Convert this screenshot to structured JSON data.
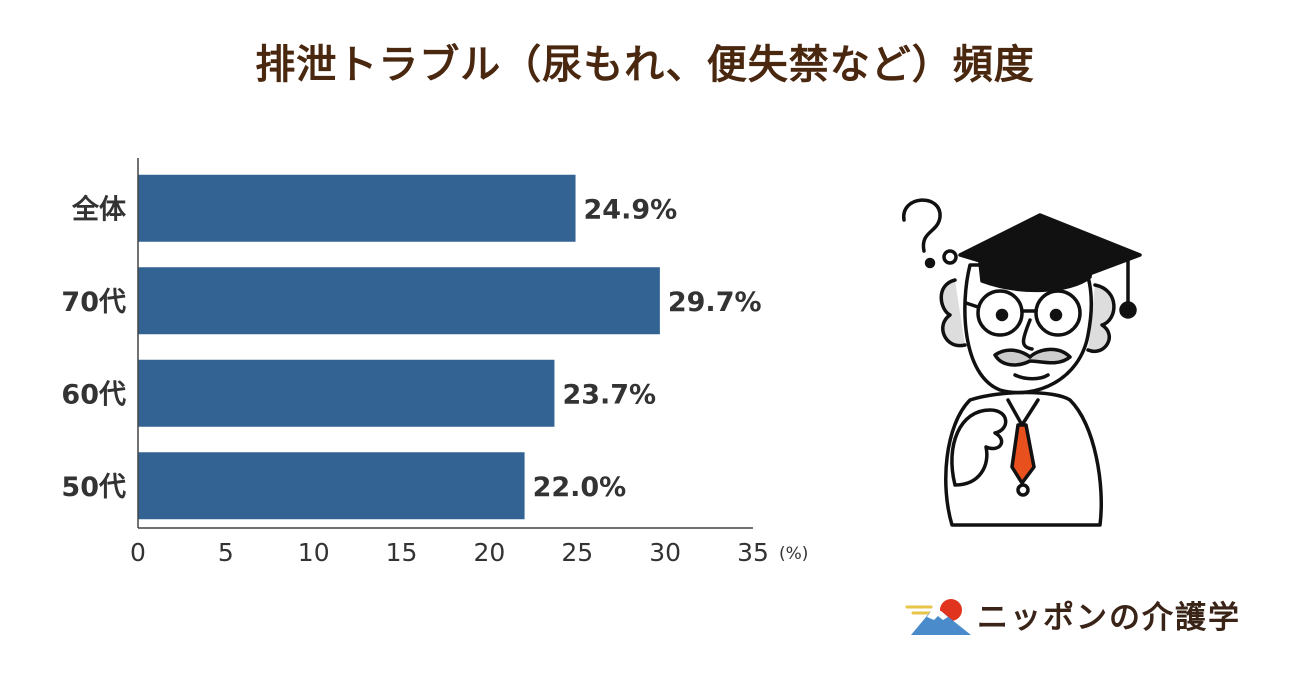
{
  "title": "排泄トラブル（尿もれ、便失禁など）頻度",
  "chart_data": {
    "type": "bar",
    "orientation": "horizontal",
    "title": "排泄トラブル（尿もれ、便失禁など）頻度",
    "categories": [
      "全体",
      "70代",
      "60代",
      "50代"
    ],
    "values": [
      24.9,
      29.7,
      23.7,
      22.0
    ],
    "value_labels": [
      "24.9%",
      "29.7%",
      "23.7%",
      "22.0%"
    ],
    "xlim": [
      0,
      35
    ],
    "xticks": [
      0,
      5,
      10,
      15,
      20,
      25,
      30,
      35
    ],
    "xunit": "(%)",
    "grid": false,
    "legend": "none",
    "bar_color": "#336392"
  },
  "illustration": {
    "icon": "thinking-professor-icon"
  },
  "brand": {
    "name": "ニッポンの介護学",
    "icon": "mount-fuji-logo-icon"
  },
  "colors": {
    "title": "#4a2810",
    "bar": "#336392",
    "brand_text": "#3a2418",
    "accent": "#e8501e"
  }
}
